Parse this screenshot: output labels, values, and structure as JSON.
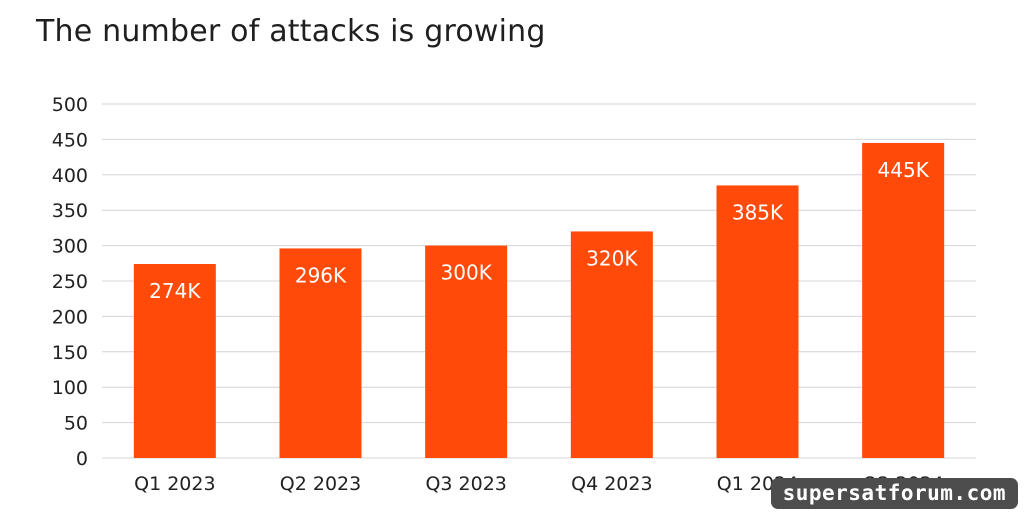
{
  "title": "The number of attacks is growing",
  "watermark": "supersatforum.com",
  "colors": {
    "bar": "#ff4a0a",
    "grid": "#d4d4d4",
    "axis_text": "#222222",
    "label": "#ffffff"
  },
  "chart_data": {
    "type": "bar",
    "title": "The number of attacks is growing",
    "categories": [
      "Q1 2023",
      "Q2 2023",
      "Q3 2023",
      "Q4 2023",
      "Q1 2024",
      "Q2 2024"
    ],
    "values": [
      274,
      296,
      300,
      320,
      385,
      445
    ],
    "data_labels": [
      "274K",
      "296K",
      "300K",
      "320K",
      "385K",
      "445K"
    ],
    "y_ticks": [
      "0",
      "50",
      "100",
      "150",
      "200",
      "250",
      "300",
      "350",
      "400",
      "450",
      "500"
    ],
    "ylim": [
      0,
      500
    ],
    "xlabel": "",
    "ylabel": "",
    "grid": true,
    "legend": "none"
  }
}
